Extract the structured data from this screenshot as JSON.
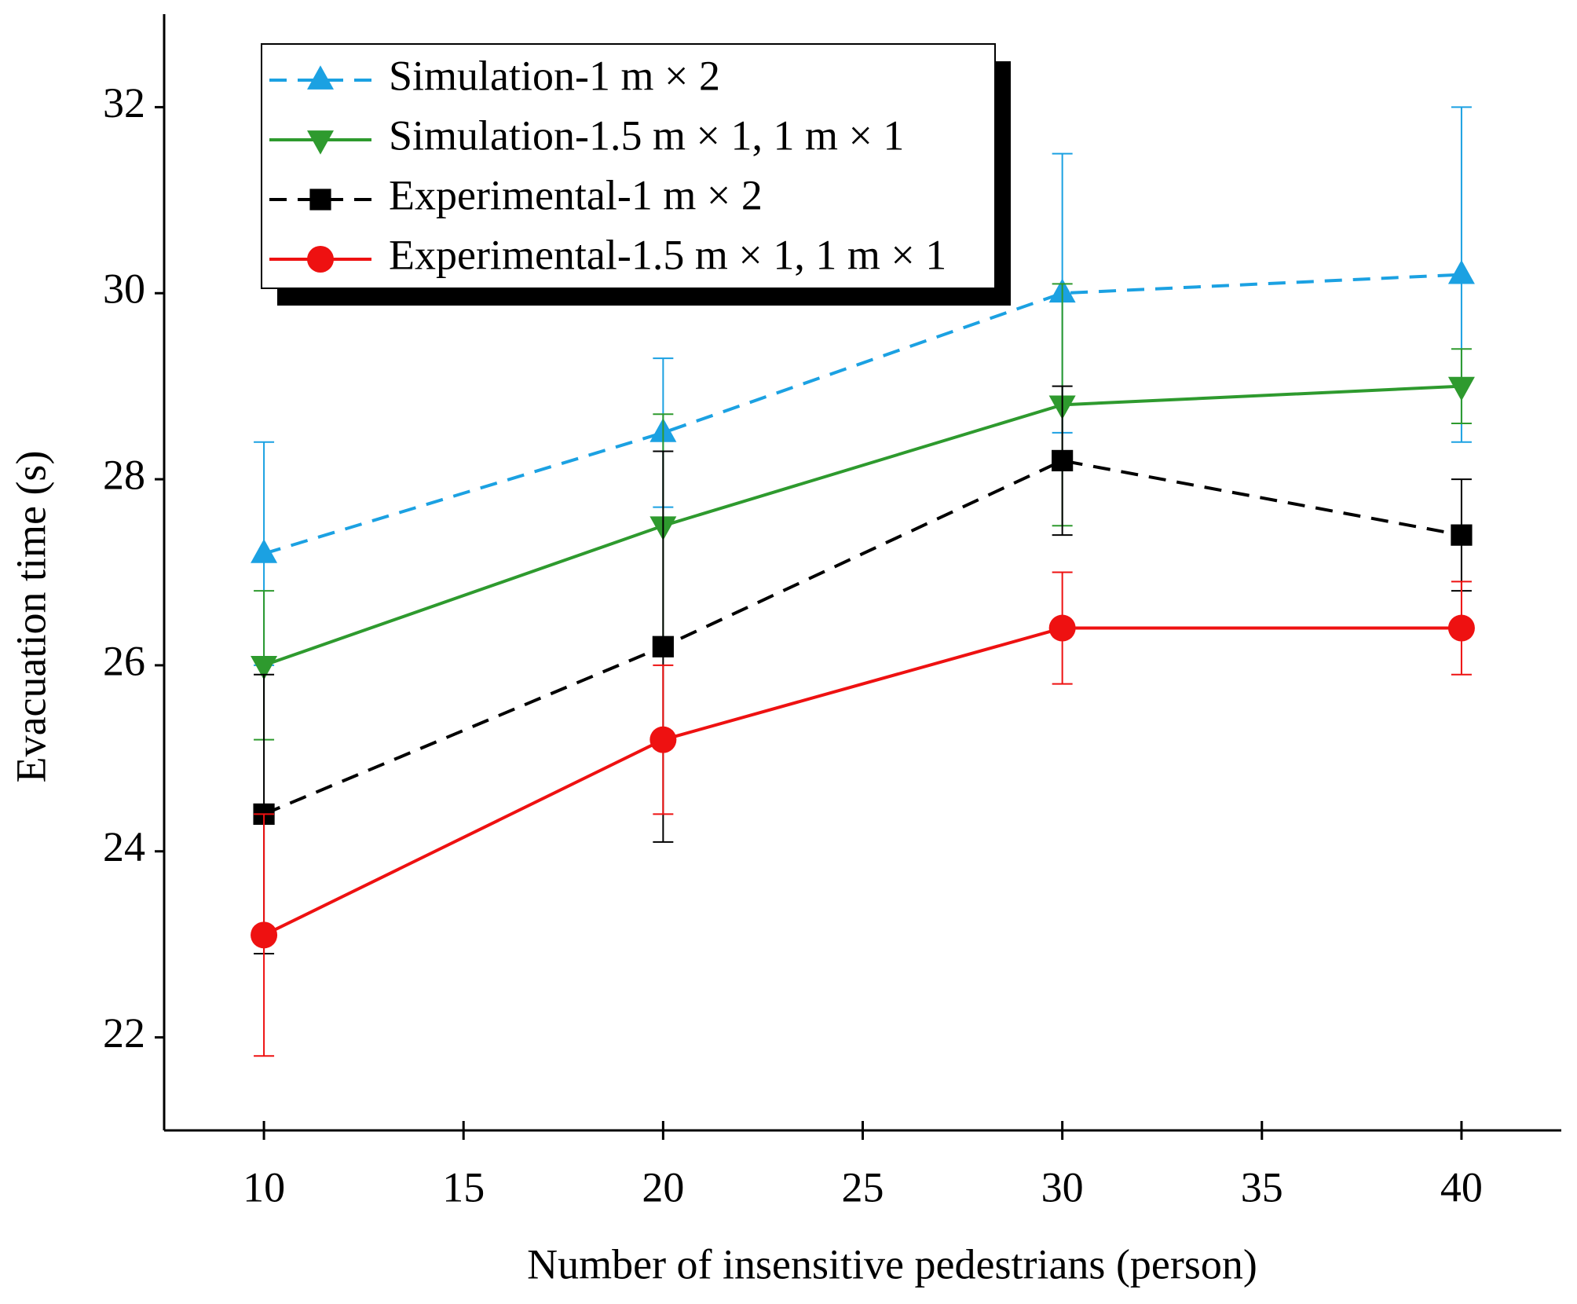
{
  "chart_data": {
    "type": "line",
    "xlabel": "Number of insensitive pedestrians (person)",
    "ylabel": "Evacuation time (s)",
    "x": [
      10,
      20,
      30,
      40
    ],
    "xlim": [
      7.5,
      42.5
    ],
    "xticks": [
      10,
      15,
      20,
      25,
      30,
      35,
      40
    ],
    "ylim": [
      21,
      33
    ],
    "yticks": [
      22,
      24,
      26,
      28,
      30,
      32
    ],
    "legend": "top-left",
    "series": [
      {
        "name": "Simulation-1 m × 2",
        "color": "#1ba1e2",
        "dash": true,
        "marker": "triangle-up",
        "values": [
          27.2,
          28.5,
          30.0,
          30.2
        ],
        "errors": [
          1.2,
          0.8,
          1.5,
          1.8
        ]
      },
      {
        "name": "Simulation-1.5 m × 1, 1 m × 1",
        "color": "#2e9a2e",
        "dash": false,
        "marker": "triangle-down",
        "values": [
          26.0,
          27.5,
          28.8,
          29.0
        ],
        "errors": [
          0.8,
          1.2,
          1.3,
          0.4
        ]
      },
      {
        "name": "Experimental-1 m × 2",
        "color": "#000000",
        "dash": true,
        "marker": "square",
        "values": [
          24.4,
          26.2,
          28.2,
          27.4
        ],
        "errors": [
          1.5,
          2.1,
          0.8,
          0.6
        ]
      },
      {
        "name": "Experimental-1.5 m × 1, 1 m × 1",
        "color": "#ee1111",
        "dash": false,
        "marker": "circle",
        "values": [
          23.1,
          25.2,
          26.4,
          26.4
        ],
        "errors": [
          1.3,
          0.8,
          0.6,
          0.5
        ]
      }
    ]
  }
}
